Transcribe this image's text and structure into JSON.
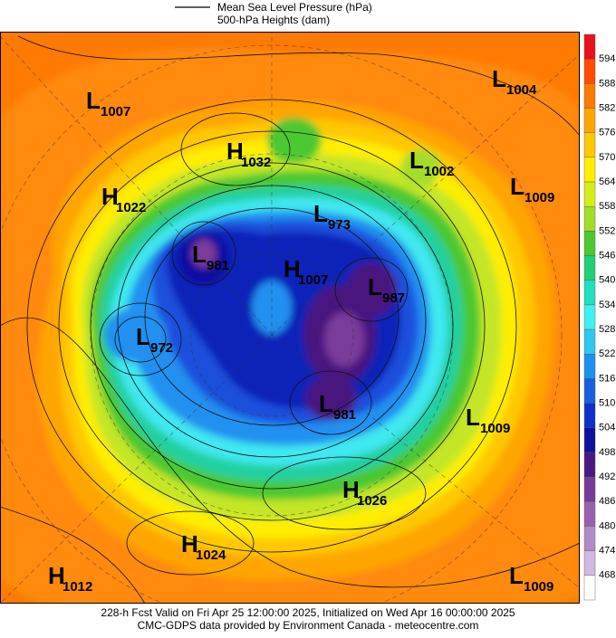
{
  "header": {
    "legend": [
      "Mean Sea Level Pressure (hPa)",
      "500-hPa Heights (dam)"
    ]
  },
  "centers": [
    {
      "type": "L",
      "value": 1007
    },
    {
      "type": "L",
      "value": 1004
    },
    {
      "type": "H",
      "value": 1032
    },
    {
      "type": "L",
      "value": 1002
    },
    {
      "type": "H",
      "value": 1022
    },
    {
      "type": "L",
      "value": 1009
    },
    {
      "type": "L",
      "value": 973
    },
    {
      "type": "L",
      "value": 981
    },
    {
      "type": "H",
      "value": 1007
    },
    {
      "type": "L",
      "value": 987
    },
    {
      "type": "L",
      "value": 972
    },
    {
      "type": "L",
      "value": 981
    },
    {
      "type": "L",
      "value": 1009
    },
    {
      "type": "H",
      "value": 1026
    },
    {
      "type": "H",
      "value": 1024
    },
    {
      "type": "H",
      "value": 1012
    },
    {
      "type": "L",
      "value": 1009
    }
  ],
  "colorbar": {
    "labels": [
      594,
      588,
      582,
      576,
      570,
      564,
      558,
      552,
      546,
      540,
      534,
      528,
      522,
      516,
      510,
      504,
      498,
      492,
      486,
      480,
      474,
      468
    ],
    "colors": [
      "#e8121a",
      "#ff4d00",
      "#ff7a00",
      "#ffa500",
      "#ffc800",
      "#ffee00",
      "#d4ec1c",
      "#a4dc2a",
      "#4cc830",
      "#22d078",
      "#20e0c0",
      "#40f0f0",
      "#30c8f0",
      "#2090f0",
      "#1860e0",
      "#1030c8",
      "#1010a0",
      "#4a1880",
      "#7a3a9a",
      "#9a60b0",
      "#b48ac6",
      "#d2b8e2",
      "#ffffff"
    ]
  },
  "footer": [
    "228-h Fcst Valid on Fri Apr 25 12:00:00 2025, Initialized on Wed Apr 16 00:00:00 2025",
    "CMC-GDPS data provided by Environment Canada - meteocentre.com"
  ]
}
